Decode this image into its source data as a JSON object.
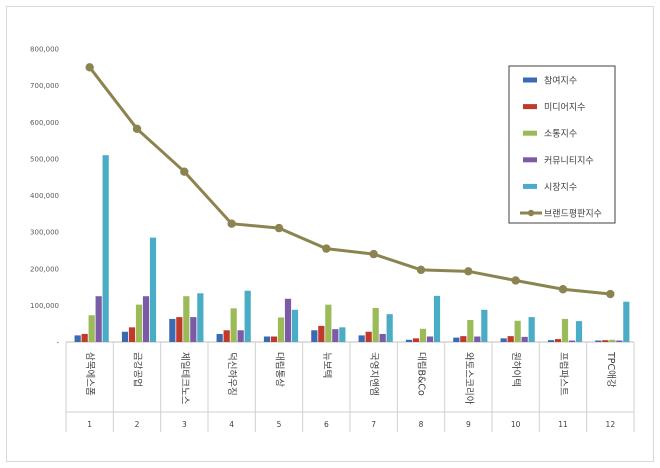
{
  "chart_data": {
    "type": "bar",
    "title": "",
    "xlabel": "",
    "ylabel": "",
    "ylim": [
      0,
      800000
    ],
    "yticks": [
      "-",
      "100,000",
      "200,000",
      "300,000",
      "400,000",
      "500,000",
      "600,000",
      "700,000",
      "800,000"
    ],
    "grid": false,
    "legend": "top-right",
    "categories": [
      "삼목에스폼",
      "금강공업",
      "제일테크노스",
      "덕신하우징",
      "대림통상",
      "뉴보텍",
      "국영지앤엠",
      "대림B&Co",
      "와토스코리아",
      "원하이텍",
      "프럼파스트",
      "TPC애강"
    ],
    "ranks": [
      "1",
      "2",
      "3",
      "4",
      "5",
      "6",
      "7",
      "8",
      "9",
      "10",
      "11",
      "12"
    ],
    "series": [
      {
        "name": "참여지수",
        "kind": "bar",
        "color": "#3a6ab0",
        "values": [
          18000,
          28000,
          63000,
          22000,
          15000,
          32000,
          18000,
          6000,
          12000,
          10000,
          5000,
          4000
        ]
      },
      {
        "name": "미디어지수",
        "kind": "bar",
        "color": "#c0392b",
        "values": [
          22000,
          40000,
          68000,
          32000,
          15000,
          44000,
          28000,
          10000,
          16000,
          16000,
          8000,
          5000
        ]
      },
      {
        "name": "소통지수",
        "kind": "bar",
        "color": "#9bbb59",
        "values": [
          73000,
          102000,
          125000,
          92000,
          67000,
          102000,
          93000,
          36000,
          60000,
          58000,
          63000,
          6000
        ]
      },
      {
        "name": "커뮤니티지수",
        "kind": "bar",
        "color": "#7b5aa6",
        "values": [
          125000,
          125000,
          68000,
          32000,
          118000,
          35000,
          22000,
          15000,
          15000,
          14000,
          4000,
          4000
        ]
      },
      {
        "name": "시장지수",
        "kind": "bar",
        "color": "#4bacc6",
        "values": [
          510000,
          285000,
          133000,
          140000,
          88000,
          40000,
          76000,
          126000,
          88000,
          68000,
          57000,
          110000
        ]
      },
      {
        "name": "브랜드평판지수",
        "kind": "line",
        "color": "#8c8450",
        "values": [
          750000,
          582000,
          465000,
          323000,
          311000,
          255000,
          240000,
          197000,
          193000,
          168000,
          144000,
          131000
        ]
      }
    ]
  }
}
